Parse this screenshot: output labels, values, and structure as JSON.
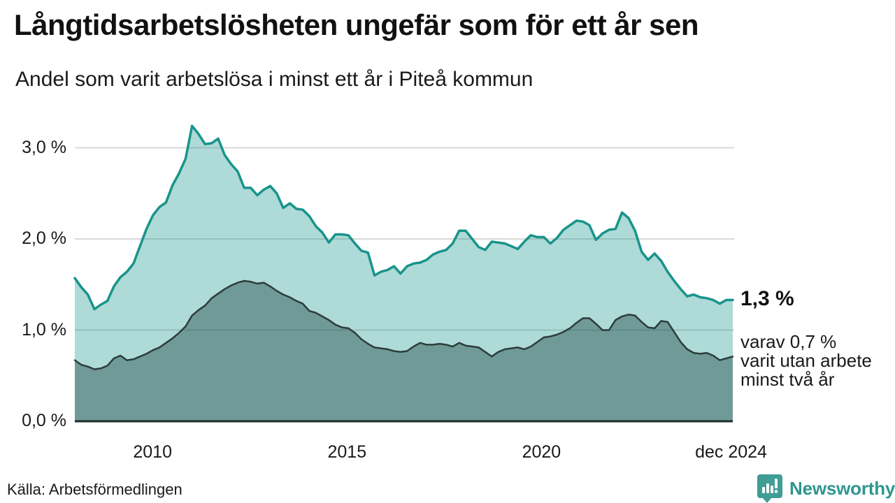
{
  "header": {
    "title": "Långtidsarbetslösheten ungefär som för ett år sen",
    "subtitle": "Andel som varit arbetslösa i minst ett år i Piteå kommun"
  },
  "annotation": {
    "value_label": "1,3 %",
    "sub_lines": [
      "varav 0,7 %",
      "varit utan arbete",
      "minst två år"
    ]
  },
  "footer": {
    "source": "Källa: Arbetsförmedlingen",
    "brand": "Newsworthy"
  },
  "palette": {
    "accent_teal": "#18948b",
    "light_fill": "#aedad4",
    "dark_line": "#2c3d3b",
    "dark_fill": "#6f9a96",
    "gridline": "#d8d8d8",
    "baseline": "#1f2b29",
    "brand_teal": "#2e968f",
    "text": "#111111"
  },
  "chart_data": {
    "type": "area",
    "title": "Långtidsarbetslösheten ungefär som för ett år sen",
    "subtitle": "Andel som varit arbetslösa i minst ett år i Piteå kommun",
    "unit": "%",
    "grid": true,
    "legend_position": "none",
    "xlim": [
      2008,
      2024.92
    ],
    "ylim": [
      0,
      3.3
    ],
    "x_even_spacing": true,
    "x_axis": {
      "ticks": [
        {
          "t": 2010,
          "label": "2010"
        },
        {
          "t": 2015,
          "label": "2015"
        },
        {
          "t": 2020,
          "label": "2020"
        },
        {
          "t": 2024.875,
          "label": "dec 2024"
        }
      ]
    },
    "y_axis": {
      "ticks": [
        {
          "value": 0,
          "label": "0,0 %"
        },
        {
          "value": 1,
          "label": "1,0 %"
        },
        {
          "value": 2,
          "label": "2,0 %"
        },
        {
          "value": 3,
          "label": "3,0 %"
        }
      ]
    },
    "series": [
      {
        "name": "Arbetslösa minst ett år",
        "end_value_label": "1,3 %",
        "line_color": "#18948b",
        "fill_color": "rgba(24,148,139,0.35)",
        "line_width": 3.5,
        "values": [
          1.57,
          1.47,
          1.39,
          1.23,
          1.28,
          1.32,
          1.48,
          1.58,
          1.64,
          1.73,
          1.92,
          2.11,
          2.26,
          2.35,
          2.4,
          2.59,
          2.72,
          2.88,
          3.24,
          3.15,
          3.04,
          3.05,
          3.1,
          2.92,
          2.82,
          2.74,
          2.56,
          2.56,
          2.48,
          2.54,
          2.58,
          2.5,
          2.34,
          2.39,
          2.33,
          2.32,
          2.25,
          2.14,
          2.07,
          1.96,
          2.05,
          2.05,
          2.04,
          1.95,
          1.87,
          1.85,
          1.6,
          1.64,
          1.66,
          1.7,
          1.62,
          1.7,
          1.73,
          1.74,
          1.77,
          1.83,
          1.86,
          1.88,
          1.95,
          2.09,
          2.09,
          2.0,
          1.91,
          1.88,
          1.97,
          1.96,
          1.95,
          1.92,
          1.89,
          1.97,
          2.04,
          2.02,
          2.02,
          1.95,
          2.01,
          2.1,
          2.15,
          2.2,
          2.19,
          2.15,
          1.99,
          2.06,
          2.1,
          2.11,
          2.29,
          2.23,
          2.09,
          1.86,
          1.77,
          1.84,
          1.76,
          1.64,
          1.54,
          1.45,
          1.37,
          1.39,
          1.36,
          1.35,
          1.33,
          1.29,
          1.33,
          1.33
        ]
      },
      {
        "name": "Varav utan arbete minst två år",
        "end_value_label": "0,7 %",
        "line_color": "#2c3d3b",
        "fill_color": "rgba(24,66,62,0.42)",
        "line_width": 2.5,
        "values": [
          0.67,
          0.62,
          0.6,
          0.57,
          0.58,
          0.61,
          0.69,
          0.72,
          0.67,
          0.68,
          0.71,
          0.74,
          0.78,
          0.81,
          0.86,
          0.91,
          0.97,
          1.04,
          1.16,
          1.22,
          1.27,
          1.35,
          1.4,
          1.45,
          1.49,
          1.52,
          1.54,
          1.53,
          1.51,
          1.52,
          1.48,
          1.43,
          1.39,
          1.36,
          1.32,
          1.29,
          1.21,
          1.19,
          1.15,
          1.11,
          1.06,
          1.03,
          1.02,
          0.97,
          0.9,
          0.85,
          0.81,
          0.8,
          0.79,
          0.77,
          0.76,
          0.77,
          0.82,
          0.86,
          0.84,
          0.84,
          0.85,
          0.84,
          0.82,
          0.86,
          0.83,
          0.82,
          0.81,
          0.76,
          0.71,
          0.76,
          0.79,
          0.8,
          0.81,
          0.79,
          0.82,
          0.87,
          0.92,
          0.93,
          0.95,
          0.98,
          1.02,
          1.08,
          1.13,
          1.13,
          1.07,
          1.0,
          1.0,
          1.11,
          1.15,
          1.17,
          1.16,
          1.09,
          1.03,
          1.02,
          1.1,
          1.09,
          0.98,
          0.87,
          0.79,
          0.75,
          0.74,
          0.75,
          0.72,
          0.67,
          0.69,
          0.71
        ]
      }
    ]
  }
}
